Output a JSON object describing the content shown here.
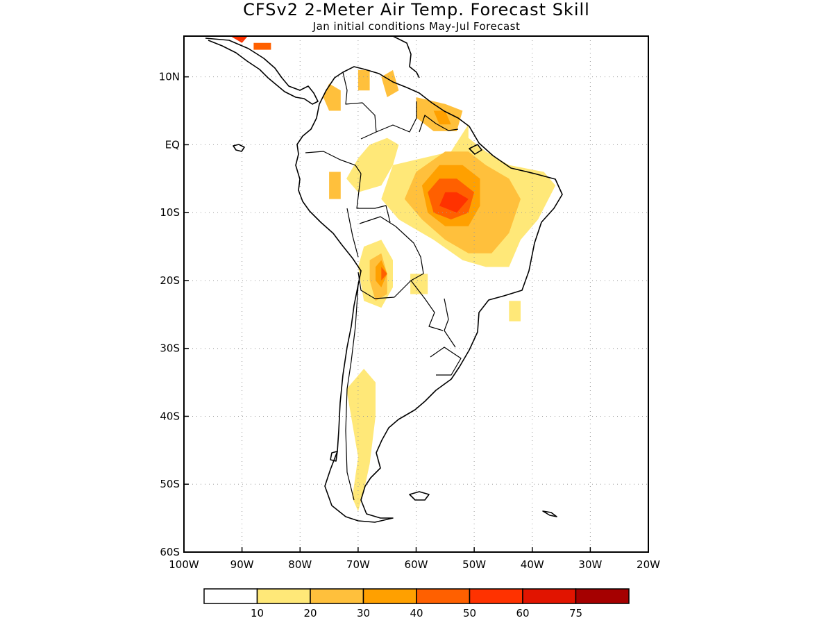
{
  "title": "CFSv2 2-Meter Air Temp. Forecast Skill",
  "subtitle": "Jan initial conditions   May-Jul Forecast",
  "map": {
    "lon_range": [
      -100,
      -20
    ],
    "lat_range": [
      -60,
      16
    ],
    "lon_ticks": [
      {
        "value": -100,
        "label": "100W"
      },
      {
        "value": -90,
        "label": "90W"
      },
      {
        "value": -80,
        "label": "80W"
      },
      {
        "value": -70,
        "label": "70W"
      },
      {
        "value": -60,
        "label": "60W"
      },
      {
        "value": -50,
        "label": "50W"
      },
      {
        "value": -40,
        "label": "40W"
      },
      {
        "value": -30,
        "label": "30W"
      },
      {
        "value": -20,
        "label": "20W"
      }
    ],
    "lat_ticks": [
      {
        "value": 10,
        "label": "10N"
      },
      {
        "value": 0,
        "label": "EQ"
      },
      {
        "value": -10,
        "label": "10S"
      },
      {
        "value": -20,
        "label": "20S"
      },
      {
        "value": -30,
        "label": "30S"
      },
      {
        "value": -40,
        "label": "40S"
      },
      {
        "value": -50,
        "label": "50S"
      },
      {
        "value": -60,
        "label": "60S"
      }
    ]
  },
  "colorbar": {
    "colors": [
      "#ffffff",
      "#ffe878",
      "#ffc03c",
      "#ffa000",
      "#ff6000",
      "#ff3200",
      "#e11400",
      "#a50000"
    ],
    "labels": [
      "10",
      "20",
      "30",
      "40",
      "50",
      "60",
      "75"
    ]
  },
  "skill_regions": [
    {
      "level": 1,
      "points": [
        [
          -54,
          -1
        ],
        [
          -64,
          -3
        ],
        [
          -66,
          -8
        ],
        [
          -63,
          -11
        ],
        [
          -57,
          -14
        ],
        [
          -52,
          -17
        ],
        [
          -48,
          -18
        ],
        [
          -44,
          -18
        ],
        [
          -42,
          -14
        ],
        [
          -39,
          -11
        ],
        [
          -36,
          -6
        ],
        [
          -38,
          -4
        ],
        [
          -44,
          -3
        ],
        [
          -48,
          -1
        ],
        [
          -51,
          1
        ],
        [
          -51,
          3
        ]
      ]
    },
    {
      "level": 1,
      "points": [
        [
          -70,
          -2
        ],
        [
          -68,
          0
        ],
        [
          -65,
          1
        ],
        [
          -63,
          0
        ],
        [
          -64,
          -3
        ],
        [
          -66,
          -6
        ],
        [
          -70,
          -7
        ],
        [
          -72,
          -5
        ]
      ]
    },
    {
      "level": 1,
      "points": [
        [
          -69,
          -15
        ],
        [
          -66,
          -14
        ],
        [
          -64,
          -17
        ],
        [
          -64,
          -21
        ],
        [
          -66,
          -24
        ],
        [
          -69,
          -23
        ],
        [
          -70,
          -18
        ]
      ]
    },
    {
      "level": 1,
      "points": [
        [
          -72,
          -36
        ],
        [
          -69,
          -33
        ],
        [
          -67,
          -35
        ],
        [
          -67,
          -40
        ],
        [
          -68,
          -47
        ],
        [
          -69,
          -51
        ],
        [
          -70,
          -54
        ],
        [
          -71,
          -52
        ],
        [
          -70,
          -46
        ],
        [
          -71,
          -41
        ]
      ]
    },
    {
      "level": 1,
      "points": [
        [
          -61,
          -19
        ],
        [
          -58,
          -19
        ],
        [
          -58,
          -22
        ],
        [
          -61,
          -22
        ]
      ]
    },
    {
      "level": 1,
      "points": [
        [
          -44,
          -23
        ],
        [
          -42,
          -23
        ],
        [
          -42,
          -26
        ],
        [
          -44,
          -26
        ]
      ]
    },
    {
      "level": 2,
      "points": [
        [
          -55,
          -1
        ],
        [
          -60,
          -4
        ],
        [
          -62,
          -8
        ],
        [
          -59,
          -11
        ],
        [
          -55,
          -14
        ],
        [
          -51,
          -16
        ],
        [
          -47,
          -16
        ],
        [
          -44,
          -13
        ],
        [
          -42,
          -8
        ],
        [
          -44,
          -5
        ],
        [
          -48,
          -3
        ],
        [
          -51,
          -1
        ]
      ]
    },
    {
      "level": 2,
      "points": [
        [
          -68,
          -17
        ],
        [
          -66,
          -16
        ],
        [
          -65,
          -19
        ],
        [
          -65,
          -22
        ],
        [
          -67,
          -23
        ],
        [
          -68,
          -20
        ]
      ]
    },
    {
      "level": 2,
      "points": [
        [
          -75,
          9
        ],
        [
          -73,
          8
        ],
        [
          -73,
          5
        ],
        [
          -75,
          5
        ],
        [
          -76,
          7
        ]
      ]
    },
    {
      "level": 2,
      "points": [
        [
          -70,
          11
        ],
        [
          -68,
          11
        ],
        [
          -68,
          8
        ],
        [
          -70,
          8
        ]
      ]
    },
    {
      "level": 2,
      "points": [
        [
          -66,
          10
        ],
        [
          -64,
          11
        ],
        [
          -63,
          8
        ],
        [
          -65,
          7
        ]
      ]
    },
    {
      "level": 2,
      "points": [
        [
          -60,
          7
        ],
        [
          -55,
          6
        ],
        [
          -52,
          5
        ],
        [
          -53,
          2
        ],
        [
          -57,
          2
        ],
        [
          -60,
          4
        ]
      ]
    },
    {
      "level": 2,
      "points": [
        [
          -75,
          -4
        ],
        [
          -73,
          -4
        ],
        [
          -73,
          -8
        ],
        [
          -75,
          -8
        ]
      ]
    },
    {
      "level": 3,
      "points": [
        [
          -56,
          -3
        ],
        [
          -59,
          -6
        ],
        [
          -58,
          -10
        ],
        [
          -55,
          -12
        ],
        [
          -51,
          -12
        ],
        [
          -49,
          -9
        ],
        [
          -49,
          -5
        ],
        [
          -52,
          -3
        ]
      ]
    },
    {
      "level": 3,
      "points": [
        [
          -67,
          -18
        ],
        [
          -66,
          -17
        ],
        [
          -65,
          -19
        ],
        [
          -66,
          -21
        ],
        [
          -67,
          -20
        ]
      ]
    },
    {
      "level": 3,
      "points": [
        [
          -57,
          5
        ],
        [
          -55,
          5
        ],
        [
          -54,
          3
        ],
        [
          -56,
          3
        ]
      ]
    },
    {
      "level": 4,
      "points": [
        [
          -56,
          -5
        ],
        [
          -58,
          -7
        ],
        [
          -57,
          -10
        ],
        [
          -54,
          -11
        ],
        [
          -51,
          -10
        ],
        [
          -50,
          -7
        ],
        [
          -53,
          -5
        ]
      ]
    },
    {
      "level": 4,
      "points": [
        [
          -66,
          -18
        ],
        [
          -65,
          -19
        ],
        [
          -66,
          -20
        ]
      ]
    },
    {
      "level": 4,
      "points": [
        [
          -88,
          15
        ],
        [
          -85,
          15
        ],
        [
          -85,
          14
        ],
        [
          -88,
          14
        ]
      ]
    },
    {
      "level": 5,
      "points": [
        [
          -55,
          -7
        ],
        [
          -56,
          -9
        ],
        [
          -53,
          -10
        ],
        [
          -51,
          -8
        ],
        [
          -53,
          -7
        ]
      ]
    },
    {
      "level": 5,
      "points": [
        [
          -92,
          16
        ],
        [
          -89,
          16
        ],
        [
          -90,
          15
        ]
      ]
    }
  ]
}
